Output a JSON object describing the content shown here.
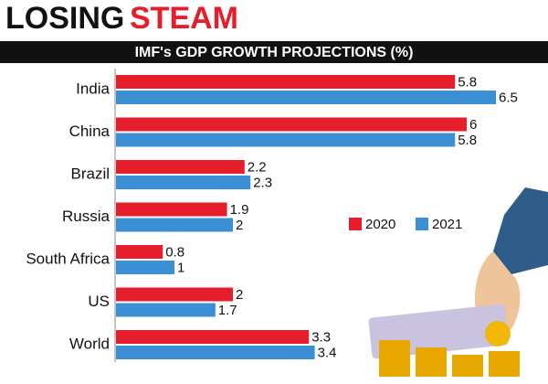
{
  "chart_data": {
    "type": "bar",
    "orientation": "horizontal",
    "title": [
      "LOSING",
      "STEAM"
    ],
    "subtitle": "IMF's GDP GROWTH PROJECTIONS (%)",
    "categories": [
      "India",
      "China",
      "Brazil",
      "Russia",
      "South Africa",
      "US",
      "World"
    ],
    "series": [
      {
        "name": "2020",
        "color": "#e61e2b",
        "values": [
          5.8,
          6,
          2.2,
          1.9,
          0.8,
          2,
          3.3
        ]
      },
      {
        "name": "2021",
        "color": "#3b8fd4",
        "values": [
          6.5,
          5.8,
          2.3,
          2,
          1,
          1.7,
          3.4
        ]
      }
    ]
  }
}
